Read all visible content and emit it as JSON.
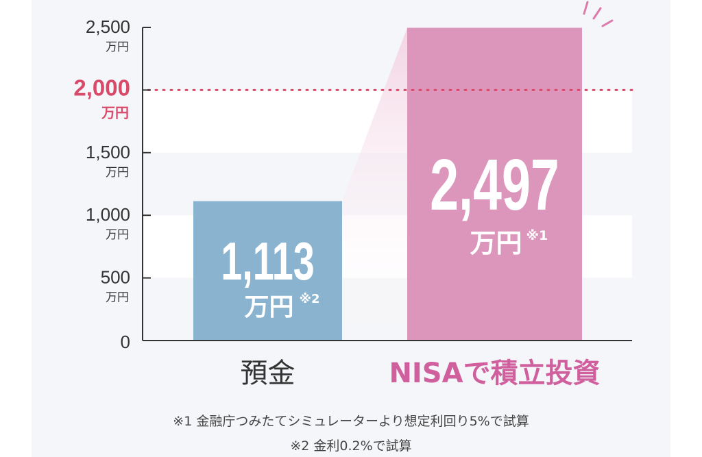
{
  "chart_data": {
    "type": "bar",
    "categories": [
      "預金",
      "NISAで積立投資"
    ],
    "values": [
      1113,
      2497
    ],
    "value_labels": [
      {
        "number": "1,113",
        "unit": "万円",
        "note": "※2"
      },
      {
        "number": "2,497",
        "unit": "万円",
        "note": "※1"
      }
    ],
    "ylim": [
      0,
      2500
    ],
    "yticks": [
      {
        "value": 0,
        "label": "0",
        "unit": ""
      },
      {
        "value": 500,
        "label": "500",
        "unit": "万円"
      },
      {
        "value": 1000,
        "label": "1,000",
        "unit": "万円"
      },
      {
        "value": 1500,
        "label": "1,500",
        "unit": "万円"
      },
      {
        "value": 2000,
        "label": "2,000",
        "unit": "万円",
        "highlight": true
      },
      {
        "value": 2500,
        "label": "2,500",
        "unit": "万円"
      }
    ],
    "reference_line": {
      "value": 2000
    },
    "footnotes": [
      "※1 金融庁つみたてシミュレーターより想定利回り5%で試算",
      "※2 金利0.2%で試算"
    ]
  },
  "colors": {
    "savings_bar": "#8ab3cf",
    "nisa_bar": "#dc96bb",
    "nisa_label": "#d0609d",
    "highlight_tick": "#d94a6a",
    "band": "#ffffff",
    "axis": "#333333",
    "tick_text": "#333333"
  }
}
